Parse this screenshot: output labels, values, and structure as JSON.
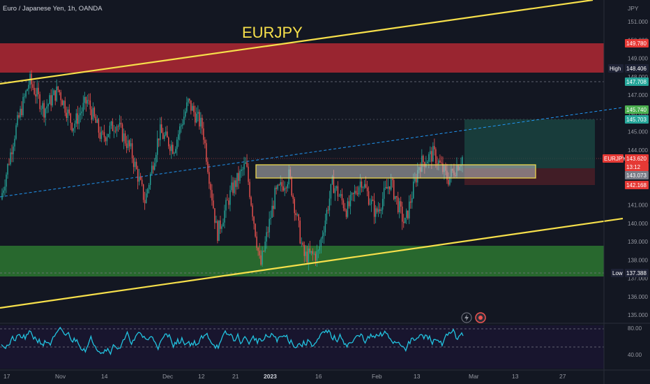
{
  "header": {
    "symbol_title": "Euro / Japanese Yen, 1h, OANDA",
    "watermark": "EURJPY",
    "currency": "JPY"
  },
  "colors": {
    "background": "#131722",
    "up": "#26a69a",
    "down": "#ef5350",
    "trendline": "#f7e04b",
    "supply_zone": "#b22833",
    "demand_zone": "#2e7d32",
    "rsi_line": "#22c3e0",
    "dashed_line": "#2196f3"
  },
  "price_axis": {
    "ticks": [
      "151.000",
      "150.000",
      "149.000",
      "148.000",
      "147.000",
      "146.000",
      "145.000",
      "144.000",
      "142.000",
      "141.000",
      "140.000",
      "139.000",
      "138.000",
      "137.000",
      "136.000",
      "135.000"
    ],
    "badges": [
      {
        "key": "zone_top",
        "text": "149.780",
        "color": "#e53935"
      },
      {
        "key": "high_label",
        "text": "High",
        "color": "#1e2235"
      },
      {
        "key": "high",
        "text": "148.406",
        "color": "#1e2235"
      },
      {
        "key": "l1",
        "text": "147.708",
        "color": "#26a69a"
      },
      {
        "key": "tp1",
        "text": "145.740",
        "color": "#4caf50"
      },
      {
        "key": "tp2",
        "text": "145.703",
        "color": "#26a69a"
      },
      {
        "key": "sym",
        "text": "EURJPY",
        "color": "#e53935"
      },
      {
        "key": "last",
        "text": "143.620",
        "color": "#e53935"
      },
      {
        "key": "timer",
        "text": "13:12",
        "color": "#e53935"
      },
      {
        "key": "entry",
        "text": "143.073",
        "color": "#787b86"
      },
      {
        "key": "stop",
        "text": "142.168",
        "color": "#e53935"
      },
      {
        "key": "low_label",
        "text": "Low",
        "color": "#1e2235"
      },
      {
        "key": "low",
        "text": "137.388",
        "color": "#1e2235"
      }
    ]
  },
  "rsi_axis": {
    "ticks": [
      "80.00",
      "40.00"
    ]
  },
  "time_axis": {
    "ticks": [
      "17",
      "Nov",
      "14",
      "Dec",
      "12",
      "21",
      "2023",
      "16",
      "Feb",
      "13",
      "Mar",
      "13",
      "27"
    ]
  },
  "chart_data": {
    "type": "candlestick",
    "title": "Euro / Japanese Yen, 1h, OANDA",
    "symbol": "EURJPY",
    "timeframe": "1h",
    "y_unit": "JPY",
    "ylim": [
      134.6,
      151.6
    ],
    "approx_path": [
      {
        "x": "17",
        "y": 141.3
      },
      {
        "x": "~",
        "y": 145.0
      },
      {
        "x": "~",
        "y": 147.8
      },
      {
        "x": "~",
        "y": 146.2
      },
      {
        "x": "Nov",
        "y": 147.3
      },
      {
        "x": "~",
        "y": 145.3
      },
      {
        "x": "14",
        "y": 146.7
      },
      {
        "x": "~",
        "y": 144.6
      },
      {
        "x": "~",
        "y": 145.5
      },
      {
        "x": "Dec",
        "y": 144.0
      },
      {
        "x": "~",
        "y": 141.2
      },
      {
        "x": "12",
        "y": 145.0
      },
      {
        "x": "~",
        "y": 144.1
      },
      {
        "x": "~",
        "y": 146.6
      },
      {
        "x": "21",
        "y": 145.2
      },
      {
        "x": "~",
        "y": 139.4
      },
      {
        "x": "~",
        "y": 141.8
      },
      {
        "x": "~",
        "y": 143.2
      },
      {
        "x": "2023",
        "y": 137.6
      },
      {
        "x": "~",
        "y": 141.5
      },
      {
        "x": "~",
        "y": 142.6
      },
      {
        "x": "~",
        "y": 138.2
      },
      {
        "x": "16",
        "y": 138.3
      },
      {
        "x": "~",
        "y": 142.2
      },
      {
        "x": "~",
        "y": 140.7
      },
      {
        "x": "Feb",
        "y": 142.4
      },
      {
        "x": "~",
        "y": 140.5
      },
      {
        "x": "~",
        "y": 142.3
      },
      {
        "x": "13",
        "y": 139.9
      },
      {
        "x": "~",
        "y": 143.2
      },
      {
        "x": "~",
        "y": 143.8
      },
      {
        "x": "~",
        "y": 142.4
      },
      {
        "x": "~",
        "y": 143.6
      }
    ],
    "last_price": 143.62,
    "session_high": 148.406,
    "session_low": 137.388,
    "zones": [
      {
        "name": "supply",
        "from": 148.05,
        "to": 149.78
      },
      {
        "name": "demand",
        "from": 137.05,
        "to": 138.85
      }
    ],
    "trade_box": {
      "entry": 143.073,
      "stop": 142.168,
      "target": 145.703
    },
    "rsi": {
      "levels": [
        80,
        40
      ]
    }
  }
}
